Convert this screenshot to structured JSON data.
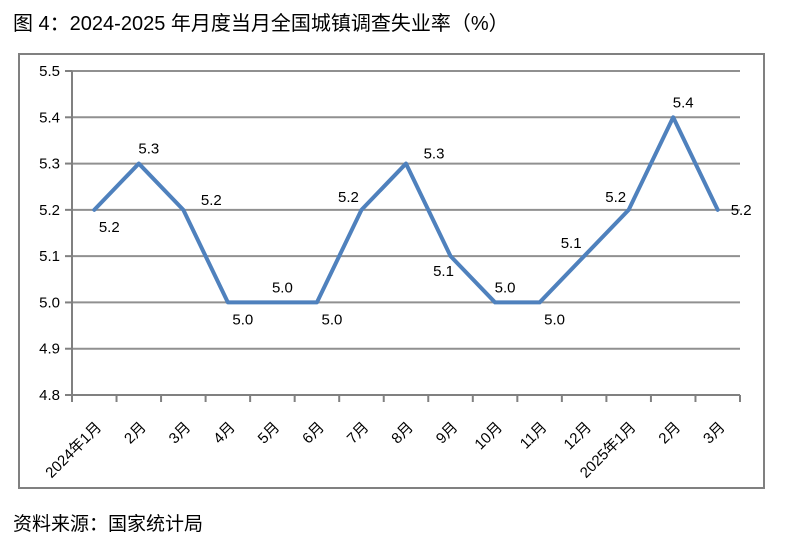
{
  "figure": {
    "title": "图 4：2024-2025 年月度当月全国城镇调查失业率（%）",
    "source": "资料来源：国家统计局"
  },
  "chart_data": {
    "type": "line",
    "title": "2024-2025 年月度当月全国城镇调查失业率（%）",
    "categories": [
      "2024年1月",
      "2月",
      "3月",
      "4月",
      "5月",
      "6月",
      "7月",
      "8月",
      "9月",
      "10月",
      "11月",
      "12月",
      "2025年1月",
      "2月",
      "3月"
    ],
    "values": [
      5.2,
      5.3,
      5.2,
      5.0,
      5.0,
      5.0,
      5.2,
      5.3,
      5.1,
      5.0,
      5.0,
      5.1,
      5.2,
      5.4,
      5.2
    ],
    "data_labels": [
      "5.2",
      "5.3",
      "5.2",
      "5.0",
      "5.0",
      "5.0",
      "5.2",
      "5.3",
      "5.1",
      "5.0",
      "5.0",
      "5.1",
      "5.2",
      "5.4",
      "5.2"
    ],
    "label_positions": [
      "below",
      "above",
      "above-right",
      "below",
      "above",
      "below",
      "above-left",
      "above-right",
      "below-left",
      "above",
      "below",
      "above-left",
      "above-left",
      "above",
      "right"
    ],
    "xlabel": "",
    "ylabel": "",
    "ylim": [
      4.8,
      5.5
    ],
    "ytick_step": 0.1,
    "ytick_labels": [
      "4.8",
      "4.9",
      "5.0",
      "5.1",
      "5.2",
      "5.3",
      "5.4",
      "5.5"
    ],
    "grid": true,
    "legend": false,
    "line_color": "#4F81BD",
    "grid_color": "#909090",
    "axis_color": "#808080",
    "label_color": "#000000",
    "frame_color": "#808080"
  }
}
